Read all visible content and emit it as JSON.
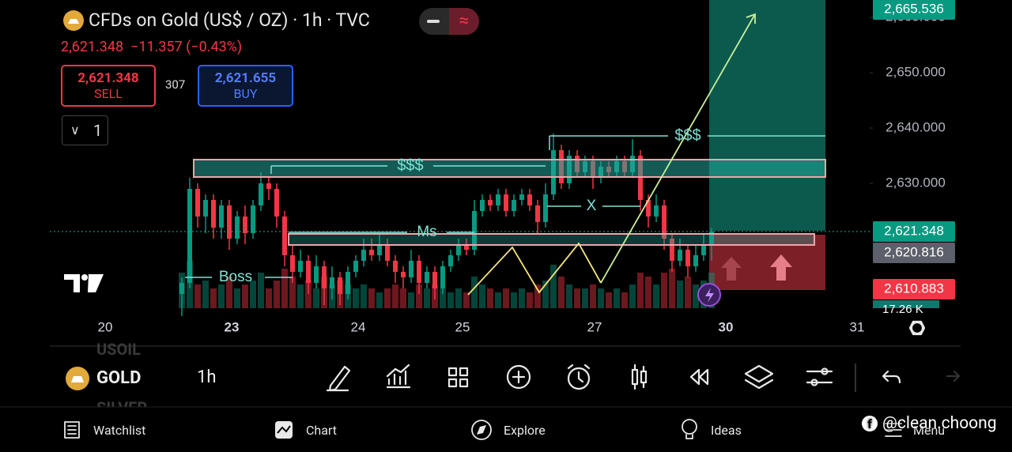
{
  "header": {
    "title": "CFDs on Gold (US$ / OZ) · 1h · TVC",
    "price": "2,621.348",
    "change": "−11.357 (−0.43%)"
  },
  "trade": {
    "sell_price": "2,621.348",
    "sell_label": "SELL",
    "spread": "307",
    "buy_price": "2,621.655",
    "buy_label": "BUY",
    "quantity": "1"
  },
  "chart_data": {
    "type": "candlestick",
    "up_color": "#089981",
    "down_color": "#f23645",
    "candles": [
      [
        2610,
        2613,
        2606,
        2612
      ],
      [
        2612,
        2631,
        2611,
        2629
      ],
      [
        2629,
        2630,
        2622,
        2624
      ],
      [
        2624,
        2628,
        2621,
        2627
      ],
      [
        2627,
        2628,
        2620,
        2622
      ],
      [
        2622,
        2627,
        2620,
        2626
      ],
      [
        2626,
        2627,
        2618,
        2620
      ],
      [
        2620,
        2625,
        2619,
        2624
      ],
      [
        2624,
        2626,
        2619,
        2621
      ],
      [
        2621,
        2627,
        2620,
        2626
      ],
      [
        2626,
        2632,
        2625,
        2630
      ],
      [
        2630,
        2631,
        2627,
        2629
      ],
      [
        2629,
        2630,
        2622,
        2624
      ],
      [
        2624,
        2625,
        2615,
        2617
      ],
      [
        2617,
        2619,
        2612,
        2614
      ],
      [
        2614,
        2618,
        2613,
        2616
      ],
      [
        2616,
        2617,
        2610,
        2612
      ],
      [
        2612,
        2617,
        2611,
        2615
      ],
      [
        2615,
        2616,
        2608,
        2611
      ],
      [
        2611,
        2615,
        2609,
        2613
      ],
      [
        2613,
        2614,
        2608,
        2610
      ],
      [
        2610,
        2615,
        2609,
        2614
      ],
      [
        2614,
        2617,
        2613,
        2616
      ],
      [
        2616,
        2620,
        2615,
        2618
      ],
      [
        2618,
        2620,
        2616,
        2617
      ],
      [
        2617,
        2621,
        2616,
        2619
      ],
      [
        2619,
        2620,
        2615,
        2616
      ],
      [
        2616,
        2617,
        2612,
        2614
      ],
      [
        2614,
        2615,
        2611,
        2613
      ],
      [
        2613,
        2618,
        2612,
        2616
      ],
      [
        2616,
        2617,
        2610,
        2612
      ],
      [
        2612,
        2615,
        2611,
        2614
      ],
      [
        2614,
        2615,
        2609,
        2611
      ],
      [
        2611,
        2616,
        2610,
        2615
      ],
      [
        2615,
        2618,
        2614,
        2617
      ],
      [
        2617,
        2620,
        2616,
        2619
      ],
      [
        2619,
        2620,
        2617,
        2618
      ],
      [
        2618,
        2627,
        2617,
        2625
      ],
      [
        2625,
        2628,
        2624,
        2627
      ],
      [
        2627,
        2628,
        2625,
        2626
      ],
      [
        2626,
        2629,
        2625,
        2628
      ],
      [
        2628,
        2629,
        2624,
        2625
      ],
      [
        2625,
        2628,
        2624,
        2627
      ],
      [
        2627,
        2629,
        2626,
        2628
      ],
      [
        2628,
        2629,
        2625,
        2626
      ],
      [
        2626,
        2627,
        2621,
        2623
      ],
      [
        2623,
        2630,
        2622,
        2628
      ],
      [
        2628,
        2639,
        2627,
        2636
      ],
      [
        2636,
        2637,
        2629,
        2630
      ],
      [
        2630,
        2636,
        2629,
        2635
      ],
      [
        2635,
        2636,
        2631,
        2632
      ],
      [
        2632,
        2635,
        2631,
        2634
      ],
      [
        2634,
        2635,
        2629,
        2631
      ],
      [
        2631,
        2634,
        2630,
        2633
      ],
      [
        2633,
        2634,
        2631,
        2632
      ],
      [
        2632,
        2635,
        2631,
        2634
      ],
      [
        2634,
        2635,
        2631,
        2632
      ],
      [
        2632,
        2638,
        2631,
        2635
      ],
      [
        2635,
        2636,
        2625,
        2627
      ],
      [
        2627,
        2628,
        2622,
        2624
      ],
      [
        2624,
        2628,
        2623,
        2626
      ],
      [
        2626,
        2627,
        2618,
        2620
      ],
      [
        2620,
        2621,
        2614,
        2616
      ],
      [
        2616,
        2620,
        2615,
        2618
      ],
      [
        2618,
        2619,
        2613,
        2615
      ],
      [
        2615,
        2619,
        2614,
        2617
      ],
      [
        2617,
        2621,
        2616,
        2619
      ],
      [
        2619,
        2622,
        2616,
        2621.348
      ]
    ],
    "volume": [
      9,
      12,
      6,
      7,
      5,
      6,
      8,
      5,
      6,
      7,
      9,
      5,
      7,
      10,
      8,
      6,
      7,
      5,
      8,
      6,
      7,
      6,
      5,
      6,
      5,
      4,
      5,
      6,
      5,
      4,
      6,
      5,
      6,
      5,
      4,
      5,
      4,
      8,
      6,
      5,
      4,
      5,
      4,
      5,
      4,
      6,
      7,
      11,
      8,
      6,
      5,
      5,
      6,
      5,
      4,
      5,
      4,
      6,
      9,
      8,
      6,
      9,
      10,
      7,
      8,
      6,
      7,
      9
    ],
    "ylim": [
      2607.43,
      2663.14
    ],
    "yticks": [
      {
        "value": 2660,
        "label": "2,660.000"
      },
      {
        "value": 2650,
        "label": "2,650.000"
      },
      {
        "value": 2640,
        "label": "2,640.000"
      },
      {
        "value": 2630,
        "label": "2,630.000"
      }
    ],
    "x_labels": [
      "20",
      "23",
      "24",
      "25",
      "27",
      "30",
      "31"
    ],
    "price_tags": [
      {
        "value": 2665.536,
        "label": "2,665.536",
        "color": "#089981"
      },
      {
        "value": 2621.348,
        "label": "2,621.348",
        "color": "#089981"
      },
      {
        "value": 2620.816,
        "label": "2,620.816",
        "color": "#5d606b"
      },
      {
        "value": 2610.883,
        "label": "2,610.883",
        "color": "#f23645"
      }
    ],
    "volume_tag": "17.26 K",
    "annotations": [
      "$$$",
      "$$$",
      "Ms",
      "X",
      "Boss"
    ]
  },
  "toolbar": {
    "symbols": [
      "USOIL",
      "GOLD",
      "SILVER"
    ],
    "interval": "1h"
  },
  "nav": [
    "Watchlist",
    "Chart",
    "Explore",
    "Ideas",
    "Menu"
  ],
  "watermark": "@clean.choong"
}
